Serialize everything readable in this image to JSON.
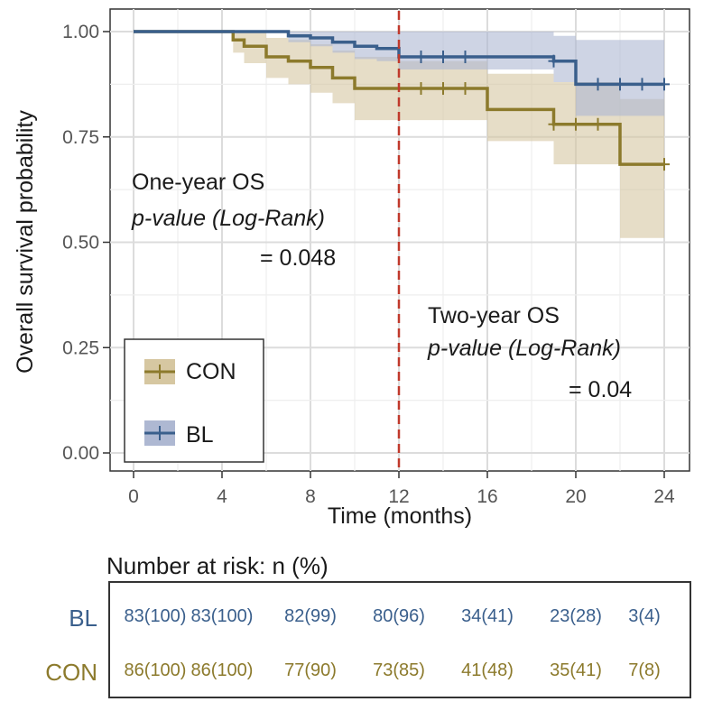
{
  "chart_data": {
    "type": "km-survival",
    "xlabel": "Time (months)",
    "ylabel": "Overall survival probability",
    "xlim": [
      0,
      24
    ],
    "ylim": [
      0,
      1
    ],
    "xticks": [
      0,
      4,
      8,
      12,
      16,
      20,
      24
    ],
    "yticks": [
      0,
      0.25,
      0.5,
      0.75,
      1.0
    ],
    "ytick_labels": [
      "0.00",
      "0.25",
      "0.50",
      "0.75",
      "1.00"
    ],
    "grid": true,
    "reference_line_x": 12,
    "series": [
      {
        "name": "CON",
        "color": "#8c7a2c",
        "fill": "#d6c7a1",
        "steps": [
          [
            0,
            1.0
          ],
          [
            4,
            1.0
          ],
          [
            4.5,
            0.98
          ],
          [
            5,
            0.965
          ],
          [
            6,
            0.94
          ],
          [
            7,
            0.93
          ],
          [
            8,
            0.915
          ],
          [
            9,
            0.89
          ],
          [
            10,
            0.865
          ],
          [
            12,
            0.865
          ],
          [
            16,
            0.815
          ],
          [
            19,
            0.78
          ],
          [
            22,
            0.78
          ],
          [
            22,
            0.685
          ],
          [
            24,
            0.685
          ]
        ],
        "upper": [
          [
            0,
            1.0
          ],
          [
            4,
            1.0
          ],
          [
            4.5,
            1.0
          ],
          [
            5,
            1.0
          ],
          [
            6,
            0.985
          ],
          [
            7,
            0.98
          ],
          [
            8,
            0.97
          ],
          [
            9,
            0.955
          ],
          [
            10,
            0.94
          ],
          [
            12,
            0.93
          ],
          [
            16,
            0.9
          ],
          [
            19,
            0.88
          ],
          [
            22,
            0.88
          ],
          [
            22,
            0.84
          ],
          [
            24,
            0.84
          ]
        ],
        "lower": [
          [
            0,
            1.0
          ],
          [
            4,
            1.0
          ],
          [
            4.5,
            0.95
          ],
          [
            5,
            0.925
          ],
          [
            6,
            0.89
          ],
          [
            7,
            0.875
          ],
          [
            8,
            0.855
          ],
          [
            9,
            0.83
          ],
          [
            10,
            0.79
          ],
          [
            12,
            0.79
          ],
          [
            16,
            0.74
          ],
          [
            19,
            0.685
          ],
          [
            22,
            0.685
          ],
          [
            22,
            0.51
          ],
          [
            24,
            0.51
          ]
        ],
        "censor_times": [
          13,
          14,
          15,
          19,
          20,
          21,
          24
        ]
      },
      {
        "name": "BL",
        "color": "#3a5f8c",
        "fill": "#aeb8d2",
        "steps": [
          [
            0,
            1.0
          ],
          [
            7,
            1.0
          ],
          [
            7,
            0.99
          ],
          [
            8,
            0.985
          ],
          [
            9,
            0.975
          ],
          [
            10,
            0.965
          ],
          [
            11,
            0.96
          ],
          [
            12,
            0.94
          ],
          [
            19,
            0.93
          ],
          [
            20,
            0.875
          ],
          [
            24,
            0.875
          ]
        ],
        "upper": [
          [
            0,
            1.0
          ],
          [
            7,
            1.0
          ],
          [
            12,
            1.0
          ],
          [
            19,
            0.99
          ],
          [
            20,
            0.98
          ],
          [
            24,
            0.98
          ]
        ],
        "lower": [
          [
            0,
            1.0
          ],
          [
            7,
            1.0
          ],
          [
            7,
            0.975
          ],
          [
            8,
            0.965
          ],
          [
            9,
            0.95
          ],
          [
            10,
            0.935
          ],
          [
            11,
            0.93
          ],
          [
            12,
            0.91
          ],
          [
            19,
            0.88
          ],
          [
            20,
            0.8
          ],
          [
            24,
            0.8
          ]
        ],
        "censor_times": [
          13,
          14,
          15,
          19,
          21,
          22,
          23,
          24
        ]
      }
    ],
    "annotations": [
      {
        "line1": "One-year OS",
        "line2": "p-value (Log-Rank)",
        "line3": "= 0.048"
      },
      {
        "line1": "Two-year OS",
        "line2": "p-value (Log-Rank)",
        "line3": "= 0.04"
      }
    ],
    "legend": {
      "placement": "bottom-left",
      "items": [
        "CON",
        "BL"
      ]
    }
  },
  "risk_table": {
    "title": "Number at risk: n (%)",
    "rows": [
      {
        "label": "BL",
        "color": "#3a5f8c",
        "cells": [
          "83(100)",
          "83(100)",
          "82(99)",
          "80(96)",
          "34(41)",
          "23(28)",
          "3(4)"
        ]
      },
      {
        "label": "CON",
        "color": "#8c7a2c",
        "cells": [
          "86(100)",
          "86(100)",
          "77(90)",
          "73(85)",
          "41(48)",
          "35(41)",
          "7(8)"
        ]
      }
    ]
  }
}
